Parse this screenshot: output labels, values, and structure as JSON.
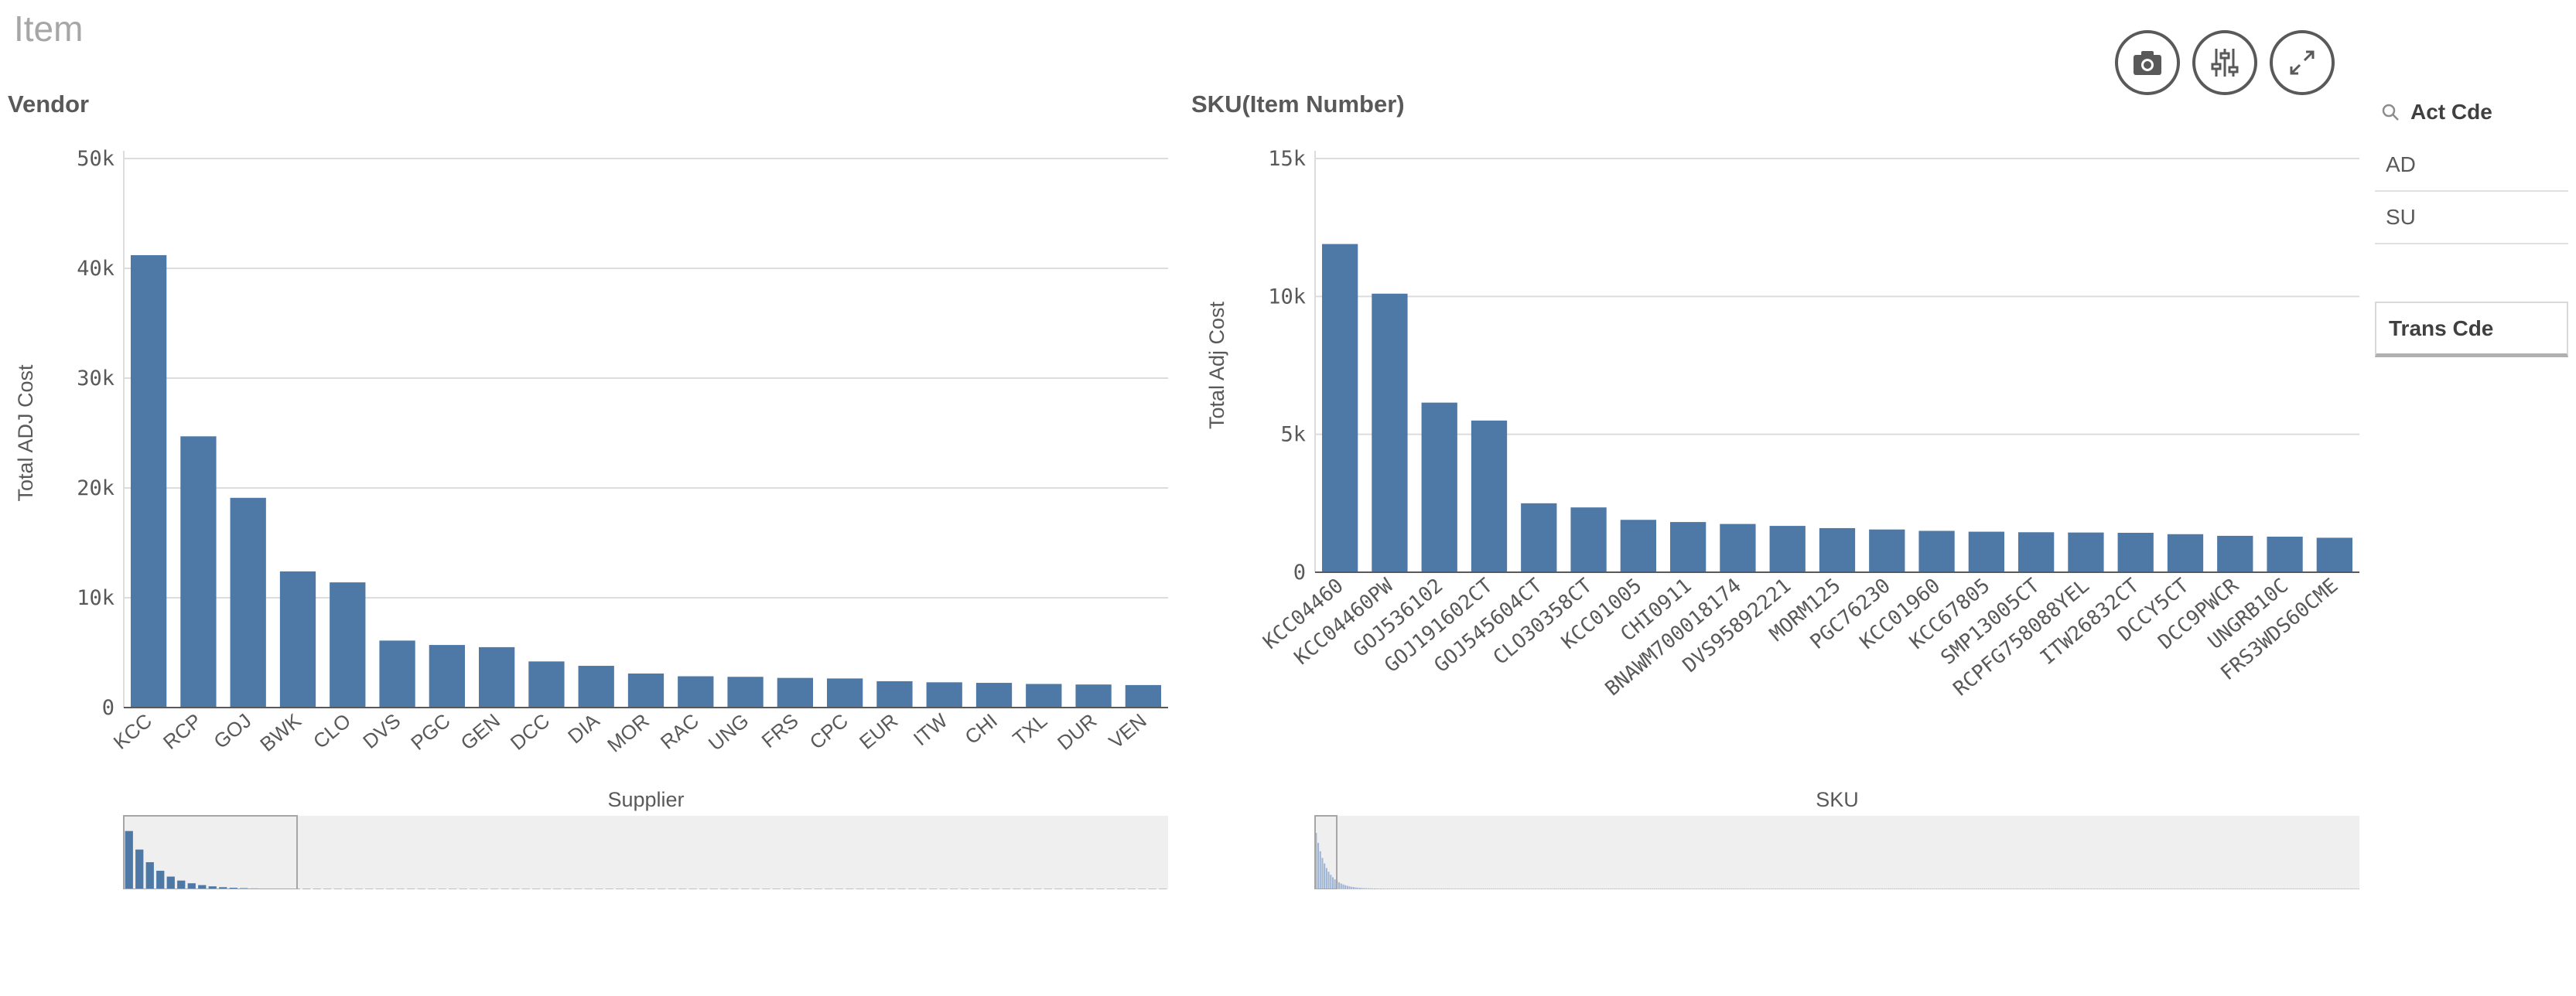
{
  "page": {
    "title": "Item"
  },
  "toolbar": {
    "icons": [
      "camera-icon",
      "sliders-icon",
      "expand-icon"
    ]
  },
  "filters": {
    "act_cde": {
      "title": "Act Cde",
      "items": [
        "AD",
        "SU"
      ]
    },
    "trans_cde": {
      "title": "Trans Cde"
    }
  },
  "chart_data": [
    {
      "type": "bar",
      "title": "Vendor",
      "xlabel": "Supplier",
      "ylabel": "Total ADJ Cost",
      "ylim": [
        0,
        50000
      ],
      "yticks": [
        0,
        10000,
        20000,
        30000,
        40000,
        50000
      ],
      "ytick_labels": [
        "0",
        "10k",
        "20k",
        "30k",
        "40k",
        "50k"
      ],
      "grid": true,
      "bar_color": "#4e79a7",
      "categories": [
        "KCC",
        "RCP",
        "GOJ",
        "BWK",
        "CLO",
        "DVS",
        "PGC",
        "GEN",
        "DCC",
        "DIA",
        "MOR",
        "RAC",
        "UNG",
        "FRS",
        "CPC",
        "EUR",
        "ITW",
        "CHI",
        "TXL",
        "DUR",
        "VEN"
      ],
      "values": [
        41200,
        24700,
        19100,
        12400,
        11400,
        6100,
        5700,
        5500,
        4200,
        3800,
        3100,
        2850,
        2800,
        2700,
        2650,
        2400,
        2300,
        2250,
        2150,
        2100,
        2050
      ]
    },
    {
      "type": "bar",
      "title": "SKU(Item Number)",
      "xlabel": "SKU",
      "ylabel": "Total Adj Cost",
      "ylim": [
        0,
        15000
      ],
      "yticks": [
        0,
        5000,
        10000,
        15000
      ],
      "ytick_labels": [
        "0",
        "5k",
        "10k",
        "15k"
      ],
      "grid": true,
      "bar_color": "#4e79a7",
      "categories": [
        "KCC04460",
        "KCC04460PW",
        "GOJ536102",
        "GOJ191602CT",
        "GOJ545604CT",
        "CLO30358CT",
        "KCC01005",
        "CHI0911",
        "BNAWM700018174",
        "DVS95892221",
        "MORM125",
        "PGC76230",
        "KCC01960",
        "KCC67805",
        "SMP13005CT",
        "RCPFG758088YEL",
        "ITW26832CT",
        "DCCY5CT",
        "DCC9PWCR",
        "UNGRB10C",
        "FRS3WDS60CME"
      ],
      "values": [
        11900,
        10100,
        6150,
        5500,
        2500,
        2350,
        1900,
        1820,
        1750,
        1680,
        1600,
        1550,
        1500,
        1470,
        1450,
        1440,
        1430,
        1380,
        1320,
        1290,
        1250
      ]
    }
  ]
}
